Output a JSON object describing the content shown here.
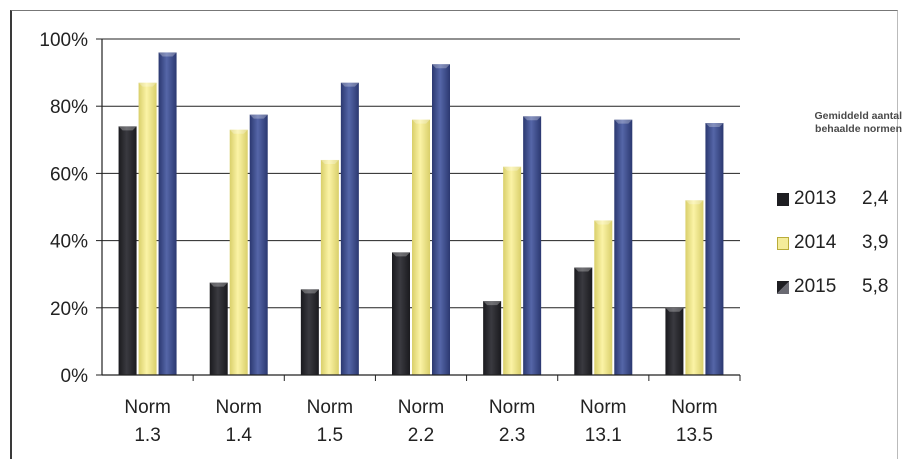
{
  "chart_data": {
    "type": "bar",
    "categories": [
      "Norm 1.3",
      "Norm 1.4",
      "Norm 1.5",
      "Norm 2.2",
      "Norm 2.3",
      "Norm 13.1",
      "Norm 13.5"
    ],
    "category_lines": [
      [
        "Norm",
        "1.3"
      ],
      [
        "Norm",
        "1.4"
      ],
      [
        "Norm",
        "1.5"
      ],
      [
        "Norm",
        "2.2"
      ],
      [
        "Norm",
        "2.3"
      ],
      [
        "Norm",
        "13.1"
      ],
      [
        "Norm",
        "13.5"
      ]
    ],
    "series": [
      {
        "name": "2013",
        "values": [
          74,
          27.5,
          25.5,
          36.5,
          22,
          32,
          20
        ],
        "color": "#26262b",
        "average": "2,4"
      },
      {
        "name": "2014",
        "values": [
          87,
          73,
          64,
          76,
          62,
          46,
          52
        ],
        "color": "#f0e68c",
        "average": "3,9"
      },
      {
        "name": "2015",
        "values": [
          96,
          77.5,
          87,
          92.5,
          77,
          76,
          75
        ],
        "color": "#3f4f8f",
        "average": "5,8"
      }
    ],
    "y_ticks": [
      "0%",
      "20%",
      "40%",
      "60%",
      "80%",
      "100%"
    ],
    "ylim": [
      0,
      100
    ],
    "grid": true,
    "legend_position": "right",
    "legend_title": "Gemiddeld aantal behaalde normen"
  }
}
